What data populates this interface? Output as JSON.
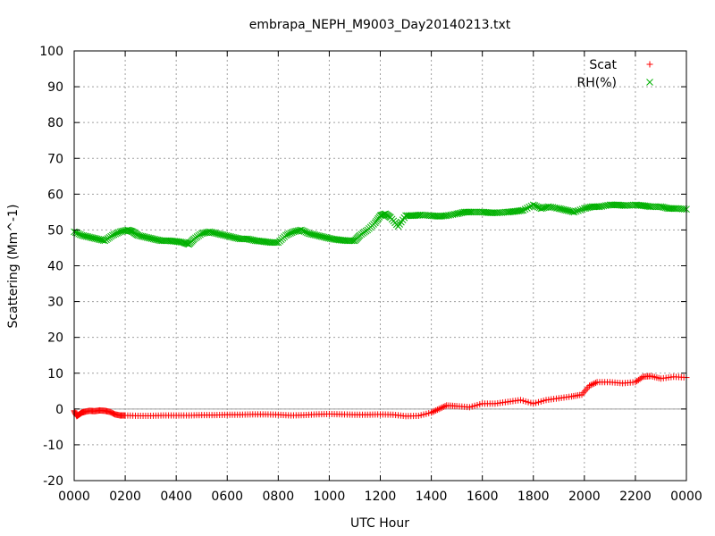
{
  "chart_data": {
    "type": "scatter",
    "title": "embrapa_NEPH_M9003_Day20140213.txt",
    "xlabel": "UTC Hour",
    "ylabel": "Scattering (Mm^-1)",
    "xlim": [
      0,
      24
    ],
    "ylim": [
      -20,
      100
    ],
    "grid": true,
    "legend_position": "top-right",
    "x_ticks": [
      0,
      2,
      4,
      6,
      8,
      10,
      12,
      14,
      16,
      18,
      20,
      22,
      24
    ],
    "x_tick_labels": [
      "0000",
      "0200",
      "0400",
      "0600",
      "0800",
      "1000",
      "1200",
      "1400",
      "1600",
      "1800",
      "2000",
      "2200",
      "0000"
    ],
    "y_ticks": [
      -20,
      -10,
      0,
      10,
      20,
      30,
      40,
      50,
      60,
      70,
      80,
      90,
      100
    ],
    "y_tick_labels": [
      "-20",
      "-10",
      "0",
      "10",
      "20",
      "30",
      "40",
      "50",
      "60",
      "70",
      "80",
      "90",
      "100"
    ],
    "zero_line": true,
    "series": [
      {
        "name": "Scat",
        "marker": "plus",
        "color": "#ff0000",
        "x": [
          0.0,
          0.1,
          0.2,
          0.3,
          0.4,
          0.6,
          0.8,
          1.0,
          1.2,
          1.4,
          1.6,
          1.8,
          2.0,
          2.5,
          3.0,
          3.5,
          4.0,
          4.5,
          5.0,
          5.5,
          6.0,
          6.5,
          7.0,
          7.5,
          8.0,
          8.5,
          9.0,
          9.5,
          10.0,
          10.5,
          11.0,
          11.5,
          12.0,
          12.5,
          13.0,
          13.5,
          14.0,
          14.3,
          14.6,
          15.0,
          15.5,
          16.0,
          16.5,
          17.0,
          17.5,
          18.0,
          18.5,
          19.0,
          19.5,
          19.9,
          20.2,
          20.5,
          21.0,
          21.5,
          22.0,
          22.3,
          22.6,
          23.0,
          23.5,
          24.0
        ],
        "y": [
          -0.5,
          -2,
          -1.5,
          -1,
          -0.8,
          -0.5,
          -0.6,
          -0.4,
          -0.5,
          -0.8,
          -1.5,
          -1.8,
          -1.8,
          -1.9,
          -1.9,
          -1.8,
          -1.8,
          -1.8,
          -1.7,
          -1.7,
          -1.6,
          -1.6,
          -1.5,
          -1.5,
          -1.6,
          -1.8,
          -1.7,
          -1.5,
          -1.4,
          -1.5,
          -1.6,
          -1.6,
          -1.5,
          -1.6,
          -2.0,
          -1.9,
          -1.0,
          0.0,
          1.0,
          0.8,
          0.5,
          1.5,
          1.5,
          2.0,
          2.5,
          1.5,
          2.5,
          3.0,
          3.5,
          4.0,
          6.5,
          7.5,
          7.5,
          7.2,
          7.5,
          9.0,
          9.2,
          8.5,
          9.0,
          8.8
        ]
      },
      {
        "name": "RH(%)",
        "marker": "cross",
        "color": "#00b000",
        "x": [
          0.0,
          0.3,
          0.6,
          0.9,
          1.2,
          1.5,
          1.8,
          2.1,
          2.3,
          2.5,
          2.8,
          3.1,
          3.4,
          3.7,
          4.0,
          4.3,
          4.5,
          4.7,
          5.0,
          5.3,
          5.6,
          5.9,
          6.2,
          6.5,
          6.8,
          7.1,
          7.4,
          7.7,
          8.0,
          8.3,
          8.6,
          8.9,
          9.2,
          9.5,
          9.8,
          10.1,
          10.4,
          10.7,
          11.0,
          11.2,
          11.5,
          11.8,
          12.0,
          12.2,
          12.4,
          12.7,
          13.0,
          13.3,
          13.6,
          14.0,
          14.3,
          14.6,
          15.0,
          15.3,
          15.6,
          16.0,
          16.3,
          16.6,
          17.0,
          17.3,
          17.6,
          18.0,
          18.3,
          18.6,
          19.0,
          19.3,
          19.6,
          20.0,
          20.3,
          20.6,
          21.0,
          21.3,
          21.6,
          22.0,
          22.3,
          22.6,
          23.0,
          23.3,
          23.6,
          24.0
        ],
        "y": [
          49.5,
          48.5,
          48,
          47.5,
          47,
          48.5,
          49.5,
          50,
          49.5,
          48.5,
          48,
          47.5,
          47,
          47,
          46.8,
          46.5,
          46,
          47.5,
          49,
          49.5,
          49,
          48.5,
          48,
          47.5,
          47.5,
          47,
          46.8,
          46.5,
          46.5,
          48.5,
          49.5,
          50,
          49,
          48.5,
          48,
          47.5,
          47.2,
          47,
          47,
          48.5,
          50,
          52,
          54,
          54.5,
          53.5,
          51,
          54,
          54,
          54.2,
          54,
          53.8,
          54,
          54.5,
          55,
          55,
          55,
          54.8,
          54.8,
          55,
          55.2,
          55.5,
          57,
          56,
          56.5,
          56,
          55.5,
          55,
          56,
          56.5,
          56.5,
          57,
          57,
          56.8,
          57,
          56.8,
          56.5,
          56.5,
          56,
          56,
          55.8
        ]
      }
    ]
  }
}
